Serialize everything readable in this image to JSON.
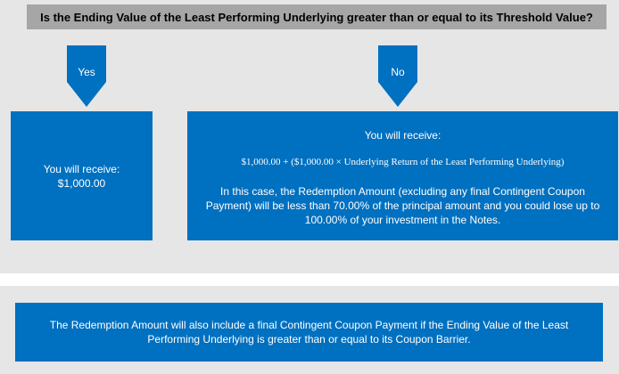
{
  "question": "Is the Ending Value of the Least Performing Underlying greater than or equal to its Threshold Value?",
  "branches": {
    "yes": {
      "label": "Yes",
      "receive_label": "You will receive:",
      "amount": "$1,000.00"
    },
    "no": {
      "label": "No",
      "receive_label": "You will receive:",
      "formula": "$1,000.00 + ($1,000.00 × Underlying Return of the Least Performing Underlying)",
      "explanation": "In this case, the Redemption Amount (excluding any final Contingent Coupon Payment) will be less than 70.00% of the principal amount and you could lose up to 100.00% of your investment in the Notes."
    }
  },
  "note": "The Redemption Amount will also include a final Contingent Coupon Payment if the Ending Value of the Least Performing Underlying is greater than or equal to its Coupon Barrier.",
  "colors": {
    "box_blue": "#0070c0",
    "panel_gray": "#e6e6e6",
    "question_gray": "#a6a6a6"
  }
}
